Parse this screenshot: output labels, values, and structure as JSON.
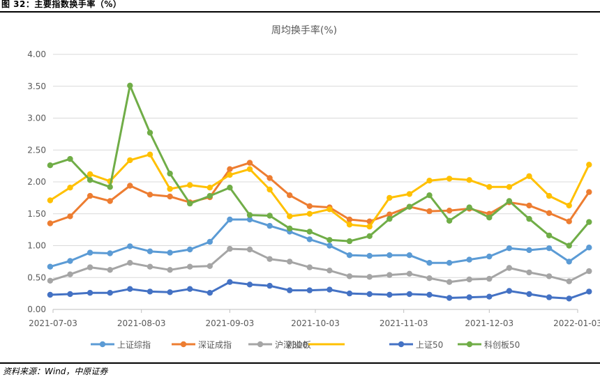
{
  "figure": {
    "header": "图 32：主要指数换手率（%）",
    "source": "资料来源：Wind，中原证券"
  },
  "chart_data": {
    "type": "line",
    "title": "周均换手率(%)",
    "xlabel": "",
    "ylabel": "",
    "ylim": [
      0,
      4
    ],
    "yticks": [
      "0.00",
      "0.50",
      "1.00",
      "1.50",
      "2.00",
      "2.50",
      "3.00",
      "3.50",
      "4.00"
    ],
    "xtick_labels": [
      "2021-07-03",
      "2021-08-03",
      "2021-09-03",
      "2021-10-03",
      "2021-11-03",
      "2021-12-03",
      "2022-01-03"
    ],
    "grid": true,
    "legend_position": "bottom",
    "x": [
      "2021-07-02",
      "2021-07-09",
      "2021-07-16",
      "2021-07-23",
      "2021-07-30",
      "2021-08-06",
      "2021-08-13",
      "2021-08-20",
      "2021-08-27",
      "2021-09-03",
      "2021-09-10",
      "2021-09-17",
      "2021-09-24",
      "2021-10-01",
      "2021-10-08",
      "2021-10-15",
      "2021-10-22",
      "2021-10-29",
      "2021-11-05",
      "2021-11-12",
      "2021-11-19",
      "2021-11-26",
      "2021-12-03",
      "2021-12-10",
      "2021-12-17",
      "2021-12-24",
      "2021-12-31",
      "2022-01-07"
    ],
    "series": [
      {
        "name": "上证综指",
        "color": "#5b9bd5",
        "values": [
          0.67,
          0.76,
          0.89,
          0.88,
          0.99,
          0.91,
          0.89,
          0.94,
          1.06,
          1.41,
          1.41,
          1.31,
          1.22,
          1.1,
          1.0,
          0.85,
          0.84,
          0.85,
          0.85,
          0.73,
          0.73,
          0.78,
          0.83,
          0.96,
          0.93,
          0.96,
          0.75,
          0.97
        ]
      },
      {
        "name": "深证成指",
        "color": "#ed7d31",
        "values": [
          1.35,
          1.46,
          1.78,
          1.7,
          1.94,
          1.8,
          1.77,
          1.68,
          1.76,
          2.2,
          2.3,
          2.06,
          1.79,
          1.62,
          1.6,
          1.41,
          1.38,
          1.49,
          1.61,
          1.54,
          1.55,
          1.58,
          1.5,
          1.68,
          1.63,
          1.51,
          1.38,
          1.84
        ]
      },
      {
        "name": "沪深300",
        "color": "#a5a5a5",
        "values": [
          0.45,
          0.55,
          0.66,
          0.62,
          0.73,
          0.67,
          0.62,
          0.67,
          0.68,
          0.95,
          0.94,
          0.79,
          0.75,
          0.66,
          0.61,
          0.52,
          0.51,
          0.54,
          0.56,
          0.49,
          0.43,
          0.47,
          0.48,
          0.65,
          0.58,
          0.52,
          0.44,
          0.6
        ]
      },
      {
        "name": "创业板",
        "color": "#ffc000",
        "values": [
          1.71,
          1.91,
          2.12,
          2.01,
          2.34,
          2.43,
          1.89,
          1.95,
          1.91,
          2.11,
          2.2,
          1.88,
          1.46,
          1.5,
          1.57,
          1.33,
          1.3,
          1.75,
          1.81,
          2.02,
          2.05,
          2.03,
          1.92,
          1.92,
          2.09,
          1.78,
          1.63,
          2.27
        ]
      },
      {
        "name": "上证50",
        "color": "#4472c4",
        "values": [
          0.23,
          0.24,
          0.26,
          0.26,
          0.32,
          0.28,
          0.27,
          0.32,
          0.26,
          0.43,
          0.39,
          0.37,
          0.3,
          0.3,
          0.31,
          0.25,
          0.24,
          0.23,
          0.24,
          0.23,
          0.18,
          0.19,
          0.2,
          0.29,
          0.24,
          0.19,
          0.17,
          0.28
        ]
      },
      {
        "name": "科创板50",
        "color": "#70ad47",
        "values": [
          2.26,
          2.36,
          2.03,
          1.92,
          3.51,
          2.77,
          2.13,
          1.66,
          1.78,
          1.91,
          1.48,
          1.47,
          1.27,
          1.22,
          1.09,
          1.07,
          1.15,
          1.42,
          1.61,
          1.79,
          1.39,
          1.6,
          1.44,
          1.7,
          1.42,
          1.16,
          1.0,
          1.37
        ]
      }
    ]
  }
}
